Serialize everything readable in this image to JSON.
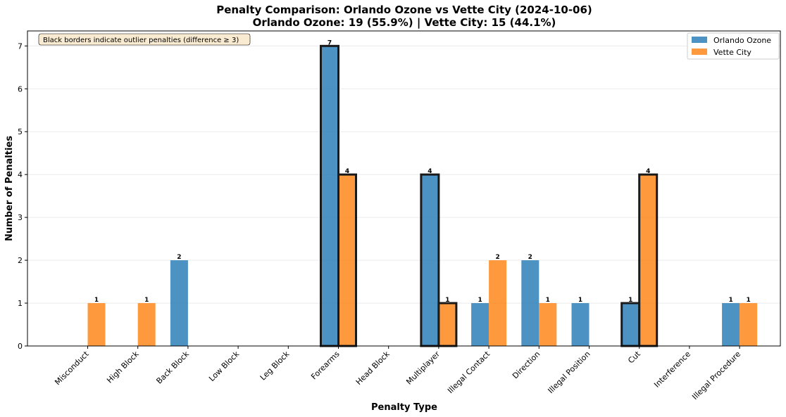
{
  "chart_data": {
    "type": "bar",
    "title": "Penalty Comparison: Orlando Ozone vs Vette City (2024-10-06)",
    "subtitle": "Orlando Ozone: 19 (55.9%) | Vette City: 15 (44.1%)",
    "xlabel": "Penalty Type",
    "ylabel": "Number of Penalties",
    "ylim": [
      0,
      7.35
    ],
    "yticks": [
      "0",
      "1",
      "2",
      "3",
      "4",
      "5",
      "6",
      "7"
    ],
    "grid": "y",
    "legend_position": "top-right",
    "annotation": "Black borders indicate outlier penalties (difference ≥ 3)",
    "categories": [
      "Misconduct",
      "High Block",
      "Back Block",
      "Low Block",
      "Leg Block",
      "Forearms",
      "Head Block",
      "Multiplayer",
      "Illegal Contact",
      "Direction",
      "Illegal Position",
      "Cut",
      "Interference",
      "Illegal Procedure"
    ],
    "series": [
      {
        "name": "Orlando Ozone",
        "color": "#1f77b4",
        "values": [
          0,
          0,
          2,
          0,
          0,
          7,
          0,
          4,
          1,
          2,
          1,
          1,
          0,
          1
        ]
      },
      {
        "name": "Vette City",
        "color": "#ff7f0e",
        "values": [
          1,
          1,
          0,
          0,
          0,
          4,
          0,
          1,
          2,
          1,
          0,
          4,
          0,
          1
        ]
      }
    ],
    "outlier_categories": [
      "Forearms",
      "Multiplayer",
      "Cut"
    ]
  }
}
